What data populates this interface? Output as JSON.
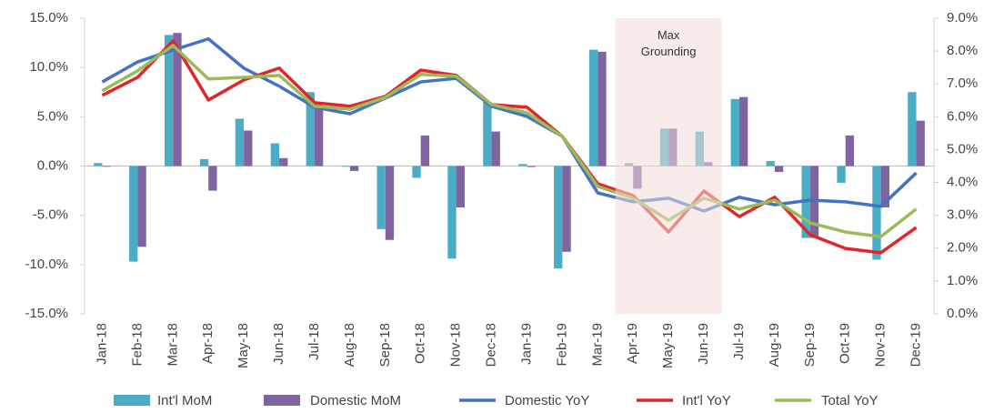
{
  "chart_data": {
    "type": "bar_line_combo",
    "categories": [
      "Jan-18",
      "Feb-18",
      "Mar-18",
      "Apr-18",
      "May-18",
      "Jun-18",
      "Jul-18",
      "Aug-18",
      "Sep-18",
      "Oct-18",
      "Nov-18",
      "Dec-18",
      "Jan-19",
      "Feb-19",
      "Mar-19",
      "Apr-19",
      "May-19",
      "Jun-19",
      "Jul-19",
      "Aug-19",
      "Sep-19",
      "Oct-19",
      "Nov-19",
      "Dec-19"
    ],
    "series": [
      {
        "name": "Int'l MoM",
        "kind": "bar",
        "color": "#4bacc6",
        "values": [
          0.3,
          -9.7,
          13.3,
          0.7,
          4.8,
          2.3,
          7.5,
          0.0,
          -6.4,
          -1.2,
          -9.4,
          6.5,
          0.2,
          -10.4,
          11.8,
          0.3,
          3.8,
          3.5,
          6.8,
          0.5,
          -7.3,
          -1.7,
          -9.5,
          7.5
        ]
      },
      {
        "name": "Domestic MoM",
        "kind": "bar",
        "color": "#8064a2",
        "values": [
          0.0,
          -8.2,
          13.5,
          -2.5,
          3.6,
          0.8,
          6.3,
          -0.5,
          -7.5,
          3.1,
          -4.2,
          3.5,
          -0.1,
          -8.7,
          11.6,
          -2.3,
          3.8,
          0.4,
          7.0,
          -0.6,
          -7.3,
          3.1,
          -4.2,
          4.6
        ]
      },
      {
        "name": "Domestic YoY",
        "kind": "line",
        "axis": "y2",
        "color": "#4472c4",
        "values": [
          7.06,
          7.67,
          8.03,
          8.37,
          7.48,
          6.93,
          6.29,
          6.09,
          6.57,
          7.06,
          7.17,
          6.32,
          6.01,
          5.4,
          3.68,
          3.41,
          3.52,
          3.13,
          3.55,
          3.32,
          3.46,
          3.41,
          3.27,
          4.29
        ]
      },
      {
        "name": "Int'l YoY",
        "kind": "line",
        "axis": "y2",
        "color": "#e0262b",
        "values": [
          6.65,
          7.2,
          8.31,
          6.51,
          7.12,
          7.48,
          6.43,
          6.32,
          6.62,
          7.42,
          7.26,
          6.37,
          6.29,
          5.4,
          3.96,
          3.6,
          2.49,
          3.74,
          2.96,
          3.55,
          2.41,
          1.99,
          1.86,
          2.63
        ]
      },
      {
        "name": "Total YoY",
        "kind": "line",
        "axis": "y2",
        "color": "#9bbb59",
        "values": [
          6.79,
          7.4,
          8.17,
          7.15,
          7.2,
          7.26,
          6.32,
          6.23,
          6.59,
          7.29,
          7.23,
          6.37,
          6.12,
          5.4,
          3.88,
          3.52,
          2.85,
          3.52,
          3.19,
          3.46,
          2.77,
          2.49,
          2.35,
          3.19
        ]
      }
    ],
    "ylim": [
      -15,
      15
    ],
    "yticks": [
      {
        "value": -15,
        "label": "-15.0%"
      },
      {
        "value": -10,
        "label": "-10.0%"
      },
      {
        "value": -5,
        "label": "-5.0%"
      },
      {
        "value": 0,
        "label": "0.0%"
      },
      {
        "value": 5,
        "label": "5.0%"
      },
      {
        "value": 10,
        "label": "10.0%"
      },
      {
        "value": 15,
        "label": "15.0%"
      }
    ],
    "y2lim": [
      0,
      9
    ],
    "y2ticks": [
      {
        "value": 0,
        "label": "0.0%"
      },
      {
        "value": 1,
        "label": "1.0%"
      },
      {
        "value": 2,
        "label": "2.0%"
      },
      {
        "value": 3,
        "label": "3.0%"
      },
      {
        "value": 4,
        "label": "4.0%"
      },
      {
        "value": 5,
        "label": "5.0%"
      },
      {
        "value": 6,
        "label": "6.0%"
      },
      {
        "value": 7,
        "label": "7.0%"
      },
      {
        "value": 8,
        "label": "8.0%"
      },
      {
        "value": 9,
        "label": "9.0%"
      }
    ],
    "grid": false,
    "legend": "bottom",
    "annotation": {
      "text": "Max Grounding",
      "from": "Apr-19",
      "to": "Jun-19",
      "color": "#f2ddd8"
    }
  }
}
